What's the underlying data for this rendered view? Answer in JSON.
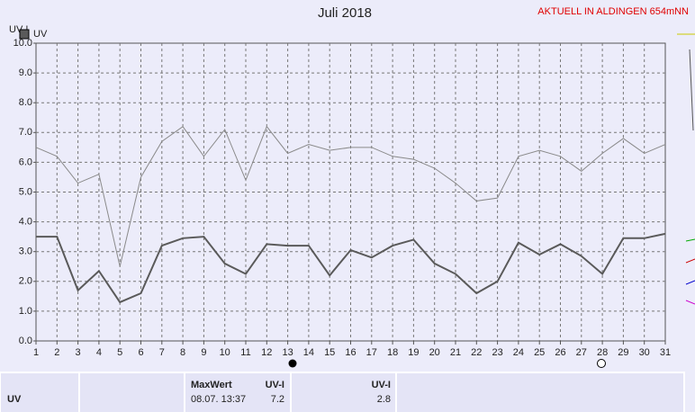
{
  "chart_data": {
    "type": "line",
    "title": "Juli 2018",
    "subtitle": "AKTUELL IN ALDINGEN 654mNN",
    "y_label": "UV-I",
    "x": [
      1,
      2,
      3,
      4,
      5,
      6,
      7,
      8,
      9,
      10,
      11,
      12,
      13,
      14,
      15,
      16,
      17,
      18,
      19,
      20,
      21,
      22,
      23,
      24,
      25,
      26,
      27,
      28,
      29,
      30,
      31
    ],
    "xlim": [
      1,
      31
    ],
    "xticks": [
      1,
      2,
      3,
      4,
      5,
      6,
      7,
      8,
      9,
      10,
      11,
      12,
      13,
      14,
      15,
      16,
      17,
      18,
      19,
      20,
      21,
      22,
      23,
      24,
      25,
      26,
      27,
      28,
      29,
      30,
      31
    ],
    "ylim": [
      0,
      10
    ],
    "yticks": [
      {
        "value": 0,
        "label": "0.0"
      },
      {
        "value": 1,
        "label": "1.0"
      },
      {
        "value": 2,
        "label": "2.0"
      },
      {
        "value": 3,
        "label": "3.0"
      },
      {
        "value": 4,
        "label": "4.0"
      },
      {
        "value": 5,
        "label": "5.0"
      },
      {
        "value": 6,
        "label": "6.0"
      },
      {
        "value": 7,
        "label": "7.0"
      },
      {
        "value": 8,
        "label": "8.0"
      },
      {
        "value": 9,
        "label": "9.0"
      },
      {
        "value": 10,
        "label": "10.0"
      }
    ],
    "grid": true,
    "series": [
      {
        "color": "#8a8a8a",
        "values": [
          6.5,
          6.2,
          5.3,
          5.6,
          2.5,
          5.5,
          6.7,
          7.2,
          6.2,
          7.1,
          5.4,
          7.2,
          6.3,
          6.6,
          6.4,
          6.5,
          6.5,
          6.2,
          6.1,
          5.8,
          5.3,
          4.7,
          4.8,
          6.2,
          6.4,
          6.2,
          5.7,
          6.3,
          6.8,
          6.3,
          6.6
        ]
      },
      {
        "name": "UV",
        "color": "#5a5a5a",
        "values": [
          3.5,
          3.5,
          1.7,
          2.35,
          1.3,
          1.6,
          3.2,
          3.45,
          3.5,
          2.6,
          2.25,
          3.25,
          3.2,
          3.2,
          2.2,
          3.05,
          2.8,
          3.2,
          3.4,
          2.6,
          2.25,
          1.6,
          2.0,
          3.3,
          2.9,
          3.25,
          2.85,
          2.25,
          3.45,
          3.45,
          3.6
        ]
      }
    ]
  },
  "table": {
    "row_label": "UV",
    "max_header": "MaxWert",
    "max_unit": "UV-I",
    "max_time": "08.07.  13:37",
    "max_value": "7.2",
    "avg_unit": "UV-I",
    "avg_value": "2.8"
  }
}
